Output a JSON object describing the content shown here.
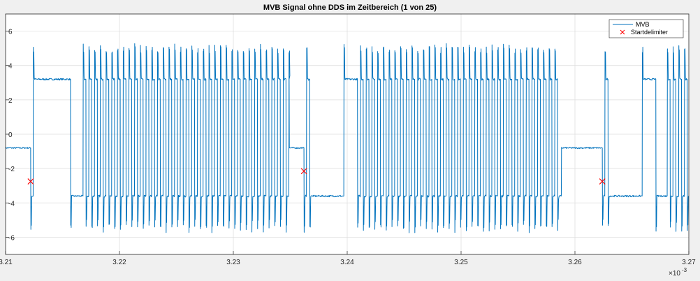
{
  "chart_data": {
    "type": "line",
    "title": "MVB Signal ohne DDS im Zeitbereich (1 von 25)",
    "xlabel": "",
    "ylabel": "",
    "xlim": [
      3.21,
      3.27
    ],
    "ylim": [
      -7,
      7
    ],
    "x_ticks": [
      "3.21",
      "3.22",
      "3.23",
      "3.24",
      "3.25",
      "3.26",
      "3.27"
    ],
    "x_tick_values": [
      3.21,
      3.22,
      3.23,
      3.24,
      3.25,
      3.26,
      3.27
    ],
    "y_ticks": [
      "-6",
      "-4",
      "-2",
      "0",
      "2",
      "4",
      "6"
    ],
    "y_tick_values": [
      -6,
      -4,
      -2,
      0,
      2,
      4,
      6
    ],
    "x_exponent_base": "×10",
    "x_exponent_power": "-3",
    "grid": true,
    "legend_position": "top-right",
    "series": [
      {
        "name": "MVB",
        "color": "#0072bd",
        "style": "line",
        "idle_level": -0.8,
        "high_level": 3.2,
        "low_level": -3.6,
        "segments": [
          {
            "x_start": 3.21,
            "x_end": 3.2122,
            "pattern": "idle"
          },
          {
            "x_start": 3.2122,
            "x_end": 3.2127,
            "pattern": "delimiter"
          },
          {
            "x_start": 3.2127,
            "x_end": 3.2157,
            "pattern": "high"
          },
          {
            "x_start": 3.2157,
            "x_end": 3.2168,
            "pattern": "low"
          },
          {
            "x_start": 3.2168,
            "x_end": 3.2349,
            "pattern": "toggle",
            "period": 0.000502
          },
          {
            "x_start": 3.2349,
            "x_end": 3.2362,
            "pattern": "idle"
          },
          {
            "x_start": 3.2362,
            "x_end": 3.2367,
            "pattern": "delimiter"
          },
          {
            "x_start": 3.2367,
            "x_end": 3.2397,
            "pattern": "low"
          },
          {
            "x_start": 3.2397,
            "x_end": 3.2409,
            "pattern": "high"
          },
          {
            "x_start": 3.2409,
            "x_end": 3.2585,
            "pattern": "toggle",
            "period": 0.000502
          },
          {
            "x_start": 3.2585,
            "x_end": 3.2588,
            "pattern": "low"
          },
          {
            "x_start": 3.2588,
            "x_end": 3.2624,
            "pattern": "idle"
          },
          {
            "x_start": 3.2624,
            "x_end": 3.2629,
            "pattern": "delimiter"
          },
          {
            "x_start": 3.2629,
            "x_end": 3.2659,
            "pattern": "low"
          },
          {
            "x_start": 3.2659,
            "x_end": 3.2671,
            "pattern": "high"
          },
          {
            "x_start": 3.2671,
            "x_end": 3.2681,
            "pattern": "low"
          },
          {
            "x_start": 3.2681,
            "x_end": 3.27,
            "pattern": "toggle",
            "period": 0.000502
          }
        ]
      },
      {
        "name": "Startdelimiter",
        "color": "#ff0000",
        "style": "marker-x",
        "points": [
          {
            "x": 3.2122,
            "y": -2.75
          },
          {
            "x": 3.2362,
            "y": -2.15
          },
          {
            "x": 3.2624,
            "y": -2.75
          }
        ]
      }
    ]
  }
}
